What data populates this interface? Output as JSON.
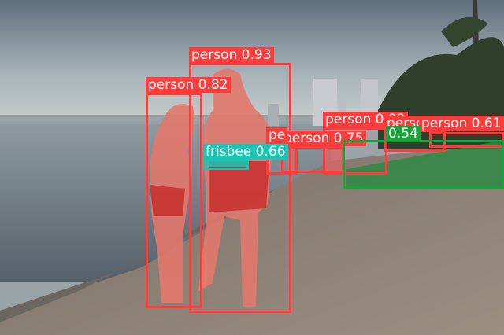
{
  "colors": {
    "person": "#ff3b3b",
    "frisbee": "#19c6b4",
    "surfboard": "#17a33a"
  },
  "detections": [
    {
      "name": "det-person-1",
      "label": "person 0.93",
      "color": "person"
    },
    {
      "name": "det-person-2",
      "label": "person 0.82",
      "color": "person"
    },
    {
      "name": "det-person-3",
      "label": "person 0.82",
      "color": "person"
    },
    {
      "name": "det-person-4",
      "label": "person 0.75",
      "color": "person"
    },
    {
      "name": "det-person-5",
      "label": "person 0.62",
      "color": "person"
    },
    {
      "name": "det-person-6",
      "label": "person 0.61",
      "color": "person"
    },
    {
      "name": "det-person-7",
      "label": "pe",
      "color": "person"
    },
    {
      "name": "det-frisbee",
      "label": "frisbee 0.66",
      "color": "frisbee"
    },
    {
      "name": "det-surfboard",
      "label": "0.54",
      "color": "surfboard"
    }
  ]
}
